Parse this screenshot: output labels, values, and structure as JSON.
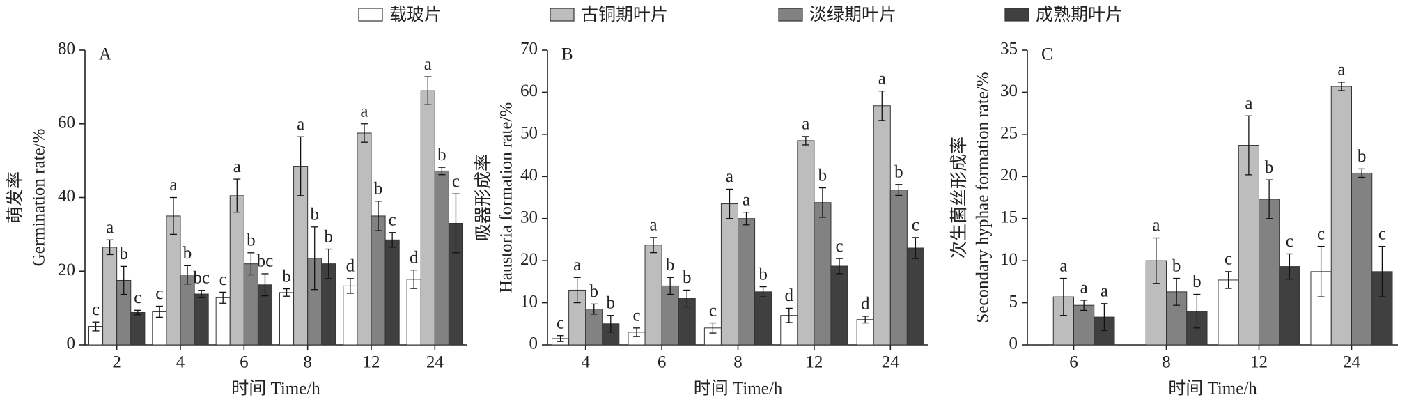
{
  "legend": {
    "entries": [
      {
        "name": "载玻片",
        "color": "#ffffff"
      },
      {
        "name": "古铜期叶片",
        "color": "#bdbdbd"
      },
      {
        "name": "淡绿期叶片",
        "color": "#828282"
      },
      {
        "name": "成熟期叶片",
        "color": "#404040"
      }
    ]
  },
  "chart_data": [
    {
      "type": "bar",
      "panel_label": "A",
      "ylabel_cn": "萌发率",
      "ylabel": "Germination rate/%",
      "xlabel": "时间  Time/h",
      "categories": [
        "2",
        "4",
        "6",
        "8",
        "12",
        "24"
      ],
      "ylim": [
        0,
        80
      ],
      "yticks": [
        0,
        20,
        40,
        60,
        80
      ],
      "series": [
        {
          "values": [
            5,
            9,
            12.8,
            14.2,
            16,
            17.8
          ],
          "errors": [
            1.2,
            1.5,
            1.5,
            1,
            2,
            2.5
          ],
          "labels": [
            "c",
            "c",
            "c",
            "b",
            "d",
            "d"
          ]
        },
        {
          "values": [
            26.5,
            35,
            40.5,
            48.5,
            57.5,
            69
          ],
          "errors": [
            2,
            5,
            4.5,
            8,
            2.5,
            3.8
          ],
          "labels": [
            "a",
            "a",
            "a",
            "a",
            "a",
            "a"
          ]
        },
        {
          "values": [
            17.5,
            19,
            22,
            23.5,
            35,
            47.2
          ],
          "errors": [
            3.8,
            2.5,
            3,
            8.5,
            4,
            1
          ],
          "labels": [
            "b",
            "b",
            "b",
            "b",
            "b",
            "b"
          ]
        },
        {
          "values": [
            8.8,
            13.8,
            16.3,
            22,
            28.5,
            33
          ],
          "errors": [
            0.6,
            1,
            3,
            4,
            2,
            8
          ],
          "labels": [
            "c",
            "bc",
            "bc",
            "b",
            "c",
            "c"
          ]
        }
      ]
    },
    {
      "type": "bar",
      "panel_label": "B",
      "ylabel_cn": "吸器形成率",
      "ylabel": "Haustoria formation rate/%",
      "xlabel": "时间  Time/h",
      "categories": [
        "4",
        "6",
        "8",
        "12",
        "24"
      ],
      "ylim": [
        0,
        70
      ],
      "yticks": [
        0,
        10,
        20,
        30,
        40,
        50,
        60,
        70
      ],
      "series": [
        {
          "values": [
            1.5,
            3,
            4,
            7,
            6
          ],
          "errors": [
            0.7,
            1,
            1.2,
            1.7,
            0.8
          ],
          "labels": [
            "c",
            "c",
            "c",
            "d",
            "d"
          ]
        },
        {
          "values": [
            13,
            23.7,
            33.5,
            48.5,
            56.8
          ],
          "errors": [
            3,
            1.8,
            3.5,
            1,
            3.5
          ],
          "labels": [
            "a",
            "a",
            "a",
            "a",
            "a"
          ]
        },
        {
          "values": [
            8.5,
            14,
            30,
            33.8,
            36.8
          ],
          "errors": [
            1.2,
            2,
            1.5,
            3.5,
            1.3
          ],
          "labels": [
            "b",
            "b",
            "a",
            "b",
            "b"
          ]
        },
        {
          "values": [
            5,
            11,
            12.6,
            18.7,
            23
          ],
          "errors": [
            2,
            2,
            1.2,
            1.8,
            2.5
          ],
          "labels": [
            "b",
            "b",
            "b",
            "c",
            "c"
          ]
        }
      ]
    },
    {
      "type": "bar",
      "panel_label": "C",
      "ylabel_cn": "次生菌丝形成率",
      "ylabel": "Secondary hyphae formation rate/%",
      "xlabel": "时间  Time/h",
      "categories": [
        "6",
        "8",
        "12",
        "24"
      ],
      "ylim": [
        0,
        35
      ],
      "yticks": [
        0,
        5,
        10,
        15,
        20,
        25,
        30,
        35
      ],
      "series": [
        {
          "values": [
            null,
            null,
            7.7,
            8.7
          ],
          "errors": [
            null,
            null,
            1,
            3
          ],
          "labels": [
            null,
            null,
            "c",
            "c"
          ]
        },
        {
          "values": [
            5.7,
            10,
            23.7,
            30.7
          ],
          "errors": [
            2.2,
            2.7,
            3.5,
            0.5
          ],
          "labels": [
            "a",
            "a",
            "a",
            "a"
          ]
        },
        {
          "values": [
            4.7,
            6.3,
            17.3,
            20.4
          ],
          "errors": [
            0.6,
            1.6,
            2.3,
            0.5
          ],
          "labels": [
            "a",
            "b",
            "b",
            "b"
          ]
        },
        {
          "values": [
            3.3,
            4,
            9.3,
            8.7
          ],
          "errors": [
            1.6,
            2,
            1.5,
            3
          ],
          "labels": [
            "a",
            "b",
            "c",
            "c"
          ]
        }
      ]
    }
  ]
}
